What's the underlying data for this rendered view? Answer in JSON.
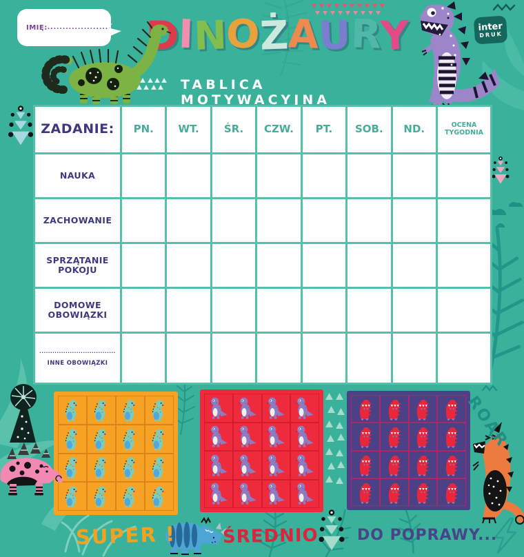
{
  "page": {
    "bg_color": "#3AB29B",
    "accent_teal_dark": "#1F9183",
    "accent_teal_light": "#7FD2BF"
  },
  "header": {
    "name_label": "IMIĘ:",
    "name_dots": "...........................",
    "title_letters": [
      {
        "char": "D",
        "color": "#DD3A4B"
      },
      {
        "char": "I",
        "color": "#F08FB0"
      },
      {
        "char": "N",
        "color": "#82BE4E"
      },
      {
        "char": "O",
        "color": "#E9A23B"
      },
      {
        "char": "Ż",
        "color": "#CBE9DF"
      },
      {
        "char": "A",
        "color": "#EE8A50"
      },
      {
        "char": "U",
        "color": "#7A7ECE"
      },
      {
        "char": "R",
        "color": "#4FB8A6"
      },
      {
        "char": "Y",
        "color": "#E34B86"
      }
    ],
    "subtitle": "TABLICA MOTYWACYJNA",
    "logo": {
      "line1": "inter",
      "line2": "DRUK",
      "bg": "#15665D"
    }
  },
  "table": {
    "task_header": "ZADANIE:",
    "day_headers": [
      "PN.",
      "WT.",
      "ŚR.",
      "CZW.",
      "PT.",
      "SOB.",
      "ND."
    ],
    "week_header": "OCENA\nTYGODNIA",
    "rows": [
      {
        "label": "NAUKA"
      },
      {
        "label": "ZACHOWANIE"
      },
      {
        "label": "SPRZĄTANIE\nPOKOJU"
      },
      {
        "label": "DOMOWE\nOBOWIĄZKI"
      },
      {
        "dots": "......................................",
        "label": "INNE OBOWIĄZKI"
      }
    ],
    "line_color": "#53C1AA",
    "task_text_color": "#3E3880",
    "day_text_color": "#47AD9A"
  },
  "stickers": {
    "rows": 4,
    "cols": 4,
    "grids": [
      {
        "id": "grid-super",
        "bg": "#F6A325",
        "line": "#E0821A",
        "dino": "teal-dino"
      },
      {
        "id": "grid-srednio",
        "bg": "#EE2B3C",
        "line": "#D41C2E",
        "dino": "purple-dino"
      },
      {
        "id": "grid-poprawy",
        "bg": "#4C4187",
        "line": "#AE2668",
        "dino": "red-dino"
      }
    ]
  },
  "ratings": [
    {
      "label": "SUPER !",
      "color": "#F2A21F"
    },
    {
      "label": "ŚREDNIO",
      "color": "#D7263D"
    },
    {
      "label": "DO POPRAWY...",
      "color": "#494488"
    }
  ],
  "decor": {
    "roar": "ROAR"
  }
}
